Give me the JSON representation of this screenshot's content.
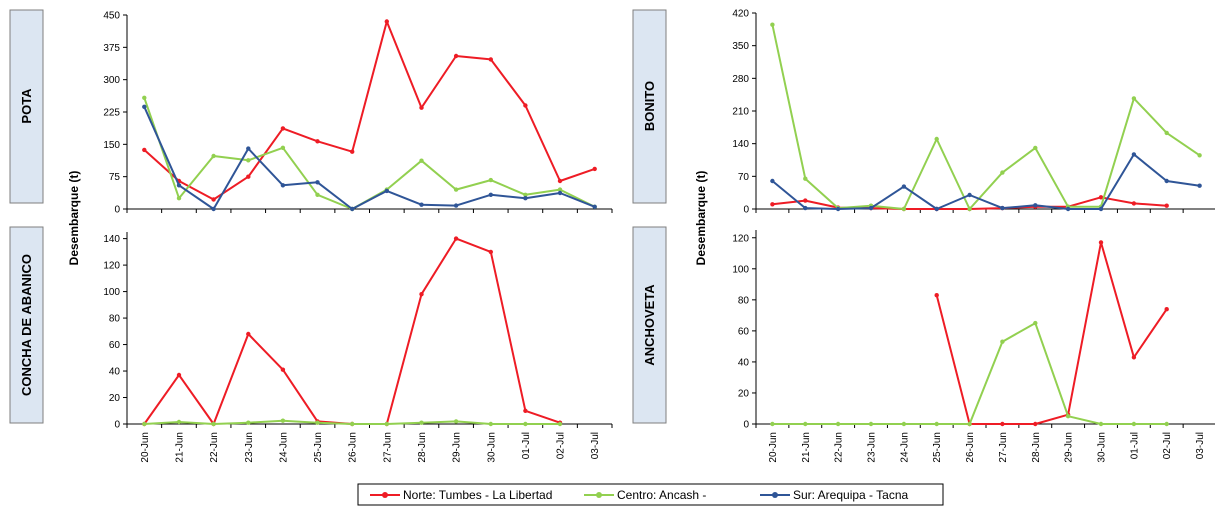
{
  "ylabel": "Desembarque (t)",
  "x_categories": [
    "20-Jun",
    "21-Jun",
    "22-Jun",
    "23-Jun",
    "24-Jun",
    "25-Jun",
    "26-Jun",
    "27-Jun",
    "28-Jun",
    "29-Jun",
    "30-Jun",
    "01-Jul",
    "02-Jul",
    "03-Jul"
  ],
  "legend": [
    {
      "name": "Norte: Tumbes - La Libertad",
      "color": "#ee1c25"
    },
    {
      "name": "Centro: Ancash -",
      "color": "#92d050"
    },
    {
      "name": "Sur: Arequipa - Tacna",
      "color": "#2f5597"
    }
  ],
  "chart_data": [
    {
      "type": "line",
      "panel_label": "POTA",
      "ylim": [
        0,
        450
      ],
      "yticks": [
        0,
        75,
        150,
        225,
        300,
        375,
        450
      ],
      "series": [
        {
          "name": "Norte: Tumbes - La Libertad",
          "color": "#ee1c25",
          "values": [
            137,
            65,
            22,
            75,
            187,
            157,
            133,
            435,
            235,
            355,
            347,
            240,
            65,
            93
          ]
        },
        {
          "name": "Centro: Ancash -",
          "color": "#92d050",
          "values": [
            258,
            25,
            123,
            113,
            142,
            33,
            0,
            45,
            112,
            45,
            67,
            33,
            45,
            5
          ]
        },
        {
          "name": "Sur: Arequipa - Tacna",
          "color": "#2f5597",
          "values": [
            237,
            55,
            0,
            140,
            55,
            62,
            0,
            42,
            10,
            8,
            33,
            25,
            37,
            5
          ]
        }
      ]
    },
    {
      "type": "line",
      "panel_label": "BONITO",
      "ylim": [
        0,
        420
      ],
      "yticks": [
        0,
        70,
        140,
        210,
        280,
        350,
        420
      ],
      "series": [
        {
          "name": "Norte: Tumbes - La Libertad",
          "color": "#ee1c25",
          "values": [
            10,
            18,
            3,
            2,
            0,
            0,
            0,
            2,
            5,
            5,
            25,
            12,
            7,
            null
          ]
        },
        {
          "name": "Centro: Ancash -",
          "color": "#92d050",
          "values": [
            395,
            65,
            2,
            7,
            0,
            150,
            0,
            78,
            131,
            5,
            5,
            237,
            163,
            115
          ]
        },
        {
          "name": "Sur: Arequipa - Tacna",
          "color": "#2f5597",
          "values": [
            60,
            2,
            0,
            2,
            48,
            0,
            30,
            2,
            8,
            0,
            0,
            117,
            60,
            50
          ]
        }
      ]
    },
    {
      "type": "line",
      "panel_label": "CONCHA DE ABANICO",
      "ylim": [
        0,
        145
      ],
      "yticks": [
        0,
        20,
        40,
        60,
        80,
        100,
        120,
        140
      ],
      "series": [
        {
          "name": "Norte: Tumbes - La Libertad",
          "color": "#ee1c25",
          "values": [
            0,
            37,
            0,
            68,
            41,
            2,
            0,
            0,
            98,
            140,
            130,
            10,
            1,
            null
          ]
        },
        {
          "name": "Centro: Ancash -",
          "color": "#92d050",
          "values": [
            0,
            1.5,
            0,
            1,
            2.5,
            1,
            0,
            0,
            1,
            2,
            0,
            0,
            0,
            null
          ]
        },
        {
          "name": "Sur: Arequipa - Tacna",
          "color": "#2f5597",
          "values": [
            null,
            null,
            null,
            null,
            null,
            null,
            null,
            null,
            null,
            null,
            null,
            null,
            null,
            null
          ]
        }
      ]
    },
    {
      "type": "line",
      "panel_label": "ANCHOVETA",
      "ylim": [
        0,
        125
      ],
      "yticks": [
        0,
        20,
        40,
        60,
        80,
        100,
        120
      ],
      "series": [
        {
          "name": "Norte: Tumbes - La Libertad",
          "color": "#ee1c25",
          "values": [
            null,
            null,
            null,
            null,
            null,
            83,
            0,
            0,
            0,
            6,
            117,
            43,
            74,
            null
          ]
        },
        {
          "name": "Centro: Ancash -",
          "color": "#92d050",
          "values": [
            0,
            0,
            0,
            0,
            0,
            0,
            0,
            53,
            65,
            5,
            0,
            0,
            0,
            null
          ]
        },
        {
          "name": "Sur: Arequipa - Tacna",
          "color": "#2f5597",
          "values": [
            null,
            null,
            null,
            null,
            null,
            null,
            null,
            null,
            null,
            null,
            null,
            null,
            null,
            null
          ]
        }
      ]
    }
  ]
}
